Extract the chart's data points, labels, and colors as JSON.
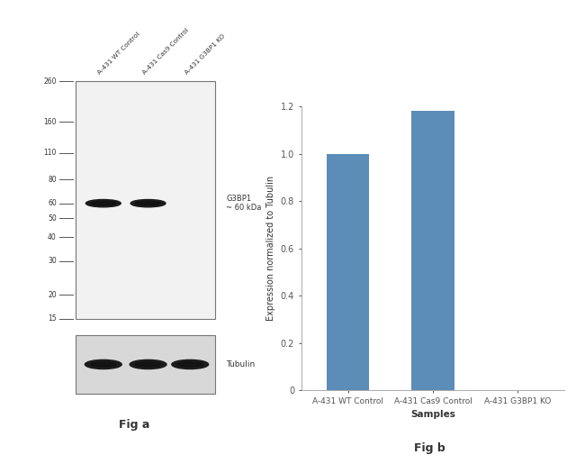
{
  "fig_a_label": "Fig a",
  "fig_b_label": "Fig b",
  "wb_lane_labels": [
    "A-431 WT Control",
    "A-431 Cas9 Control",
    "A-431 G3BP1 KO"
  ],
  "mw_markers": [
    260,
    160,
    110,
    80,
    60,
    50,
    40,
    30,
    20,
    15
  ],
  "g3bp1_label": "G3BP1\n~ 60 kDa",
  "tubulin_label": "Tubulin",
  "bar_categories": [
    "A-431 WT Control",
    "A-431 Cas9 Control",
    "A-431 G3BP1 KO"
  ],
  "bar_values": [
    1.0,
    1.18,
    0.0
  ],
  "bar_color": "#5b8db8",
  "ylabel": "Expression normalized to Tubulin",
  "xlabel": "Samples",
  "ylim": [
    0,
    1.2
  ],
  "yticks": [
    0,
    0.2,
    0.4,
    0.6,
    0.8,
    1.0,
    1.2
  ],
  "background_color": "#ffffff",
  "blot_bg": "#f0f0f0",
  "tubulin_bg": "#d8d8d8",
  "band_color_dark": "#1a1a1a",
  "tick_color": "#555555"
}
